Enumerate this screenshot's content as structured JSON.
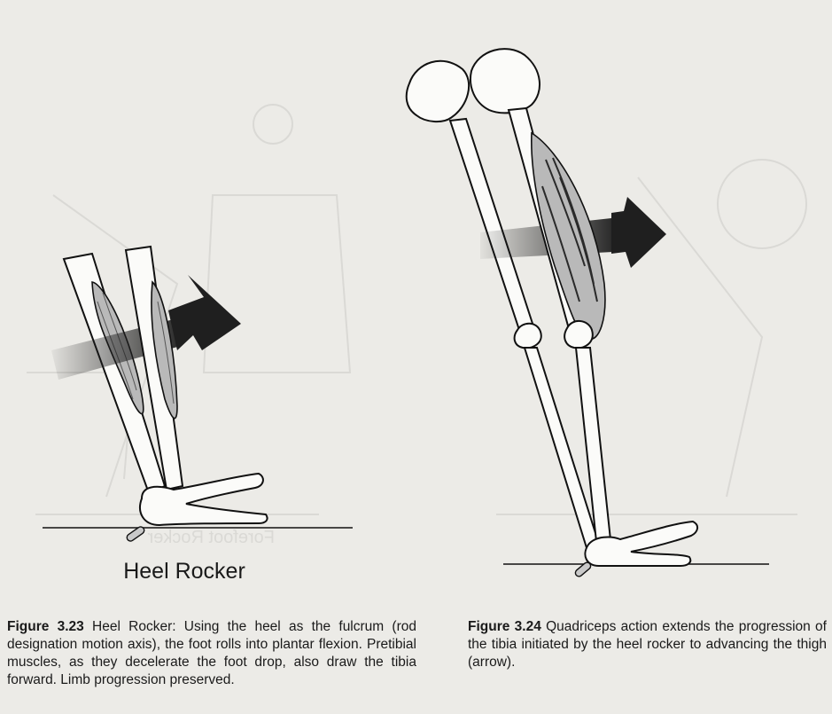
{
  "figures": {
    "left": {
      "label": "Heel Rocker",
      "caption_number": "Figure 3.23",
      "caption_text": "Heel Rocker: Using the heel as the fulcrum (rod designation motion axis), the foot rolls into plantar flexion. Pretibial muscles, as they decelerate the foot drop, also draw the tibia forward. Limb progression preserved."
    },
    "right": {
      "caption_number": "Figure 3.24",
      "caption_text": "Quadriceps action extends the progression of the tibia initiated by the heel rocker to advancing the thigh (arrow)."
    }
  },
  "colors": {
    "paper": "#ecebe7",
    "ink": "#1a1a1a",
    "muscle": "#b9b9b9",
    "arrow": "#1f1f1f",
    "ghost": "#8a8a8a"
  },
  "background_ghost_text": "Forefoot Rocker"
}
